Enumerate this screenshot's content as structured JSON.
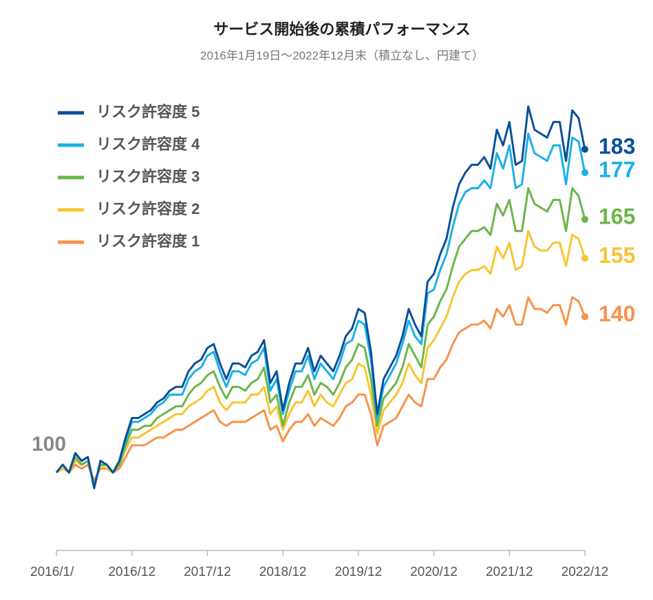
{
  "chart_data": {
    "type": "line",
    "title": "サービス開始後の累積パフォーマンス",
    "subtitle": "2016年1月19日〜2022年12月末（積立なし、円建て）",
    "categories": [
      "2016/1/",
      null,
      null,
      null,
      null,
      null,
      null,
      null,
      null,
      null,
      null,
      null,
      "2016/12",
      null,
      null,
      null,
      null,
      null,
      null,
      null,
      null,
      null,
      null,
      null,
      "2017/12",
      null,
      null,
      null,
      null,
      null,
      null,
      null,
      null,
      null,
      null,
      null,
      "2018/12",
      null,
      null,
      null,
      null,
      null,
      null,
      null,
      null,
      null,
      null,
      null,
      "2019/12",
      null,
      null,
      null,
      null,
      null,
      null,
      null,
      null,
      null,
      null,
      null,
      "2020/12",
      null,
      null,
      null,
      null,
      null,
      null,
      null,
      null,
      null,
      null,
      null,
      "2021/12",
      null,
      null,
      null,
      null,
      null,
      null,
      null,
      null,
      null,
      null,
      null,
      "2022/12"
    ],
    "ylim": [
      80,
      198
    ],
    "series": [
      {
        "name": "リスク許容度 5",
        "color": "#0a4f9a",
        "values": [
          100,
          102,
          100,
          105,
          103,
          104,
          96,
          103,
          102,
          100,
          103,
          109,
          114,
          114,
          115,
          116,
          118,
          119,
          121,
          122,
          122,
          126,
          128,
          129,
          132,
          133,
          128,
          124,
          128,
          128,
          127,
          130,
          131,
          134,
          123,
          126,
          116,
          123,
          128,
          128,
          132,
          126,
          130,
          128,
          126,
          130,
          135,
          137,
          142,
          141,
          131,
          115,
          124,
          127,
          130,
          135,
          142,
          138,
          135,
          149,
          151,
          156,
          160,
          168,
          174,
          177,
          179,
          179,
          181,
          178,
          188,
          184,
          190,
          179,
          180,
          194,
          188,
          187,
          186,
          190,
          190,
          180,
          193,
          191,
          183
        ]
      },
      {
        "name": "リスク許容度 4",
        "color": "#1ab0e8",
        "values": [
          100,
          102,
          100,
          105,
          103,
          104,
          96,
          103,
          102,
          100,
          103,
          108,
          113,
          113,
          114,
          115,
          117,
          118,
          120,
          120,
          120,
          124,
          126,
          127,
          130,
          131,
          126,
          122,
          126,
          126,
          125,
          128,
          129,
          132,
          121,
          124,
          115,
          121,
          126,
          126,
          130,
          124,
          128,
          126,
          124,
          128,
          133,
          134,
          139,
          138,
          129,
          114,
          122,
          125,
          128,
          133,
          139,
          135,
          133,
          146,
          147,
          152,
          156,
          163,
          169,
          172,
          173,
          173,
          175,
          173,
          182,
          178,
          184,
          173,
          174,
          187,
          182,
          181,
          180,
          184,
          184,
          174,
          186,
          185,
          177
        ]
      },
      {
        "name": "リスク許容度 3",
        "color": "#6ab64a",
        "values": [
          100,
          102,
          100,
          104,
          102,
          103,
          97,
          102,
          102,
          100,
          102,
          107,
          111,
          111,
          112,
          112,
          114,
          115,
          116,
          117,
          117,
          120,
          122,
          123,
          125,
          126,
          122,
          119,
          122,
          122,
          121,
          123,
          124,
          127,
          118,
          120,
          112,
          118,
          122,
          122,
          125,
          120,
          123,
          122,
          120,
          123,
          127,
          129,
          133,
          132,
          124,
          112,
          119,
          121,
          123,
          127,
          133,
          130,
          127,
          138,
          140,
          144,
          147,
          153,
          158,
          160,
          162,
          162,
          163,
          161,
          169,
          166,
          170,
          162,
          162,
          173,
          169,
          168,
          167,
          170,
          170,
          162,
          173,
          171,
          165
        ]
      },
      {
        "name": "リスク許容度 2",
        "color": "#f7c531",
        "values": [
          100,
          101,
          100,
          103,
          102,
          103,
          97,
          102,
          101,
          100,
          102,
          106,
          109,
          109,
          110,
          111,
          112,
          113,
          114,
          115,
          115,
          117,
          118,
          119,
          121,
          122,
          118,
          116,
          118,
          118,
          118,
          120,
          120,
          122,
          115,
          117,
          111,
          115,
          118,
          118,
          121,
          117,
          120,
          118,
          117,
          120,
          123,
          124,
          128,
          127,
          120,
          110,
          116,
          118,
          120,
          123,
          128,
          125,
          123,
          132,
          134,
          137,
          140,
          145,
          149,
          151,
          152,
          152,
          153,
          151,
          158,
          155,
          159,
          152,
          153,
          162,
          158,
          157,
          157,
          159,
          159,
          153,
          161,
          160,
          155
        ]
      },
      {
        "name": "リスク許容度 1",
        "color": "#f7924a",
        "values": [
          100,
          101,
          100,
          102,
          101,
          102,
          98,
          101,
          101,
          100,
          101,
          104,
          107,
          107,
          107,
          108,
          109,
          109,
          110,
          111,
          111,
          112,
          113,
          114,
          115,
          116,
          113,
          112,
          113,
          113,
          113,
          114,
          115,
          116,
          111,
          112,
          108,
          111,
          113,
          113,
          115,
          112,
          114,
          113,
          112,
          114,
          117,
          118,
          120,
          120,
          115,
          107,
          112,
          113,
          114,
          117,
          120,
          118,
          117,
          124,
          124,
          127,
          129,
          133,
          136,
          137,
          138,
          138,
          139,
          137,
          142,
          140,
          143,
          138,
          138,
          145,
          142,
          142,
          141,
          143,
          143,
          138,
          145,
          144,
          140
        ]
      }
    ]
  }
}
